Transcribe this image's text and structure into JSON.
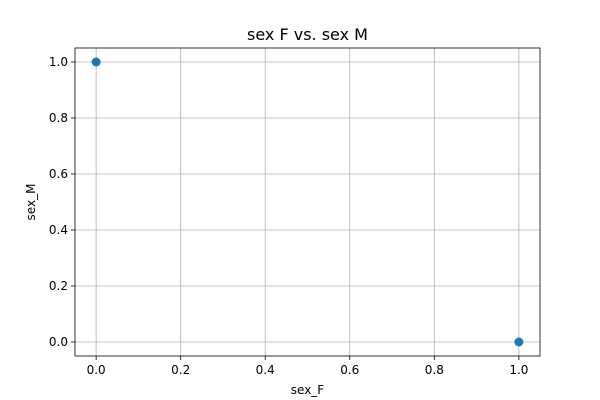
{
  "chart_data": {
    "type": "scatter",
    "title": "sex F vs. sex M",
    "xlabel": "sex_F",
    "ylabel": "sex_M",
    "xlim": [
      -0.05,
      1.05
    ],
    "ylim": [
      -0.05,
      1.05
    ],
    "x_ticks": [
      0.0,
      0.2,
      0.4,
      0.6,
      0.8,
      1.0
    ],
    "y_ticks": [
      0.0,
      0.2,
      0.4,
      0.6,
      0.8,
      1.0
    ],
    "x_tick_labels": [
      "0.0",
      "0.2",
      "0.4",
      "0.6",
      "0.8",
      "1.0"
    ],
    "y_tick_labels": [
      "0.0",
      "0.2",
      "0.4",
      "0.6",
      "0.8",
      "1.0"
    ],
    "grid": true,
    "marker_color": "#1f77b4",
    "grid_color": "#b0b0b0",
    "points": [
      {
        "x": 0.0,
        "y": 1.0
      },
      {
        "x": 1.0,
        "y": 0.0
      }
    ]
  }
}
